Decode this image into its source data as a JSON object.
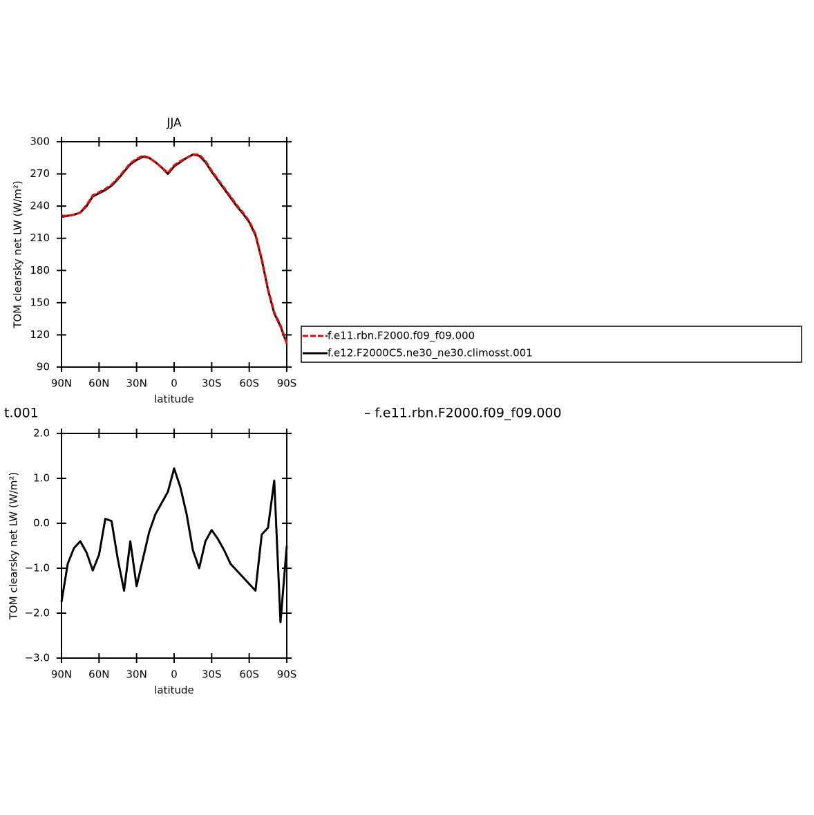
{
  "chart_data": [
    {
      "type": "line",
      "title": "JJA",
      "xlabel": "latitude",
      "ylabel": "TOM clearsky net LW (W/m²)",
      "x": [
        90,
        85,
        80,
        75,
        70,
        65,
        60,
        55,
        50,
        45,
        40,
        35,
        30,
        25,
        20,
        15,
        10,
        5,
        0,
        -5,
        -10,
        -15,
        -20,
        -25,
        -30,
        -35,
        -40,
        -45,
        -50,
        -55,
        -60,
        -65,
        -70,
        -75,
        -80,
        -85,
        -90
      ],
      "xlim": [
        90,
        -90
      ],
      "xticks": [
        {
          "value": 90,
          "label": "90N"
        },
        {
          "value": 60,
          "label": "60N"
        },
        {
          "value": 30,
          "label": "30N"
        },
        0,
        {
          "value": -30,
          "label": "30S"
        },
        {
          "value": -60,
          "label": "60S"
        },
        {
          "value": -90,
          "label": "90S"
        }
      ],
      "ylim": [
        90,
        300
      ],
      "yticks": [
        90,
        120,
        150,
        180,
        210,
        240,
        270,
        300
      ],
      "legend": "right",
      "series": [
        {
          "name": "f.e11.rbn.F2000.f09_f09.000",
          "color": "#ff0000",
          "dash": true,
          "values": [
            231,
            231,
            232,
            234,
            241,
            250,
            253,
            256,
            260,
            266,
            273,
            280,
            284,
            287,
            285,
            281,
            276,
            271,
            278,
            282,
            285,
            288,
            288,
            282,
            273,
            265,
            257,
            249,
            241,
            234,
            226,
            214,
            191,
            163,
            141,
            129,
            112
          ]
        },
        {
          "name": "f.e12.F2000C5.ne30_ne30.climosst.001",
          "color": "#000000",
          "dash": false,
          "values": [
            230,
            231,
            232,
            234,
            240,
            249,
            252,
            255,
            259,
            265,
            272,
            279,
            283,
            286,
            285,
            281,
            276,
            270,
            277,
            281,
            285,
            288,
            287,
            281,
            272,
            264,
            256,
            248,
            240,
            233,
            225,
            213,
            190,
            162,
            140,
            128,
            112
          ]
        }
      ]
    },
    {
      "type": "line",
      "xlabel": "latitude",
      "ylabel": "TOM clearsky net LW (W/m²)",
      "annotations": [
        "t.001",
        "– f.e11.rbn.F2000.f09_f09.000"
      ],
      "x": [
        90,
        85,
        80,
        75,
        70,
        65,
        60,
        55,
        50,
        45,
        40,
        35,
        30,
        25,
        20,
        15,
        10,
        5,
        0,
        -5,
        -10,
        -15,
        -20,
        -25,
        -30,
        -35,
        -40,
        -45,
        -50,
        -55,
        -60,
        -65,
        -70,
        -75,
        -80,
        -85,
        -90
      ],
      "xlim": [
        90,
        -90
      ],
      "xticks": [
        {
          "value": 90,
          "label": "90N"
        },
        {
          "value": 60,
          "label": "60N"
        },
        {
          "value": 30,
          "label": "30N"
        },
        0,
        {
          "value": -30,
          "label": "30S"
        },
        {
          "value": -60,
          "label": "60S"
        },
        {
          "value": -90,
          "label": "90S"
        }
      ],
      "ylim": [
        -3,
        2
      ],
      "yticks": [
        {
          "value": -3,
          "label": "−3.0"
        },
        {
          "value": -2,
          "label": "−2.0"
        },
        {
          "value": -1,
          "label": "−1.0"
        },
        {
          "value": 0,
          "label": "0.0"
        },
        {
          "value": 1,
          "label": "1.0"
        },
        {
          "value": 2,
          "label": "2.0"
        }
      ],
      "color": "#000000",
      "values": [
        -1.75,
        -0.9,
        -0.55,
        -0.4,
        -0.65,
        -1.05,
        -0.7,
        0.1,
        0.05,
        -0.8,
        -1.5,
        -0.4,
        -1.4,
        -0.8,
        -0.2,
        0.2,
        0.45,
        0.7,
        1.22,
        0.8,
        0.2,
        -0.6,
        -1.0,
        -0.4,
        -0.15,
        -0.35,
        -0.6,
        -0.9,
        -1.05,
        -1.2,
        -1.35,
        -1.5,
        -0.25,
        -0.1,
        0.95,
        -2.2,
        -0.5
      ]
    }
  ]
}
